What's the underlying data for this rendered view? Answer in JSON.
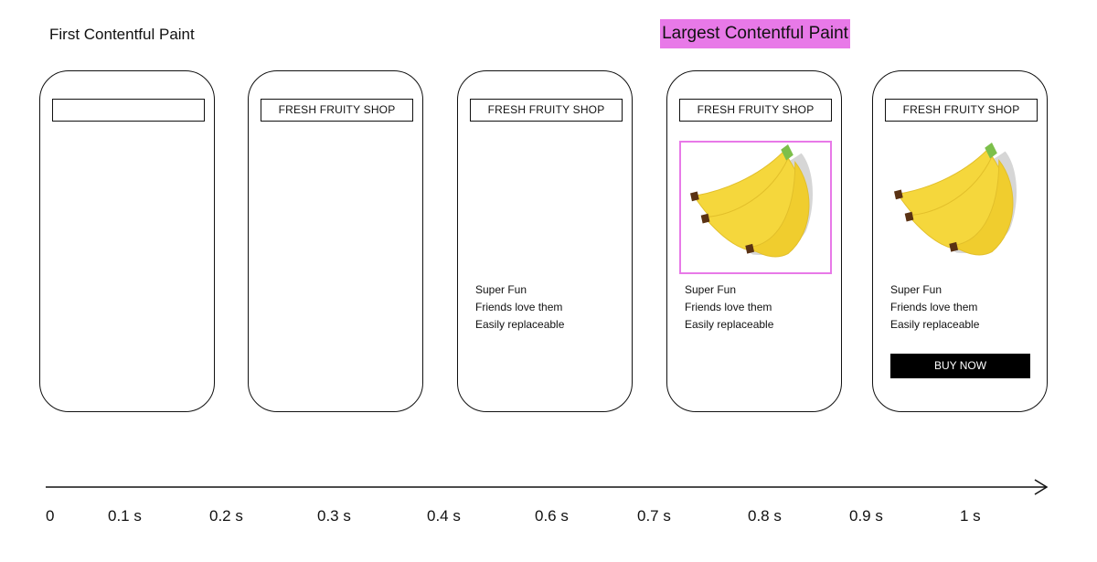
{
  "labels": {
    "fcp": "First Contentful Paint",
    "lcp": "Largest Contentful Paint"
  },
  "colors": {
    "lcp_highlight": "#e879e8",
    "banana_yellow": "#f5d73c",
    "banana_stem": "#7cbf4a",
    "banana_tip": "#5a3213",
    "shadow": "#d6d6d6",
    "button": "#000000"
  },
  "frames": [
    {
      "header": ""
    },
    {
      "header": "FRESH FRUITY SHOP"
    },
    {
      "header": "FRESH FRUITY SHOP",
      "lines": [
        "Super Fun",
        "Friends love them",
        "Easily replaceable"
      ]
    },
    {
      "header": "FRESH FRUITY SHOP",
      "image": "banana-bunch",
      "highlighted": true,
      "lines": [
        "Super Fun",
        "Friends love them",
        "Easily replaceable"
      ]
    },
    {
      "header": "FRESH FRUITY SHOP",
      "image": "banana-bunch",
      "lines": [
        "Super Fun",
        "Friends love them",
        "Easily replaceable"
      ],
      "button": "BUY NOW"
    }
  ],
  "timeline": {
    "ticks": [
      "0",
      "0.1 s",
      "0.2 s",
      "0.3 s",
      "0.4 s",
      "0.6 s",
      "0.7 s",
      "0.8 s",
      "0.9 s",
      "1 s"
    ]
  }
}
